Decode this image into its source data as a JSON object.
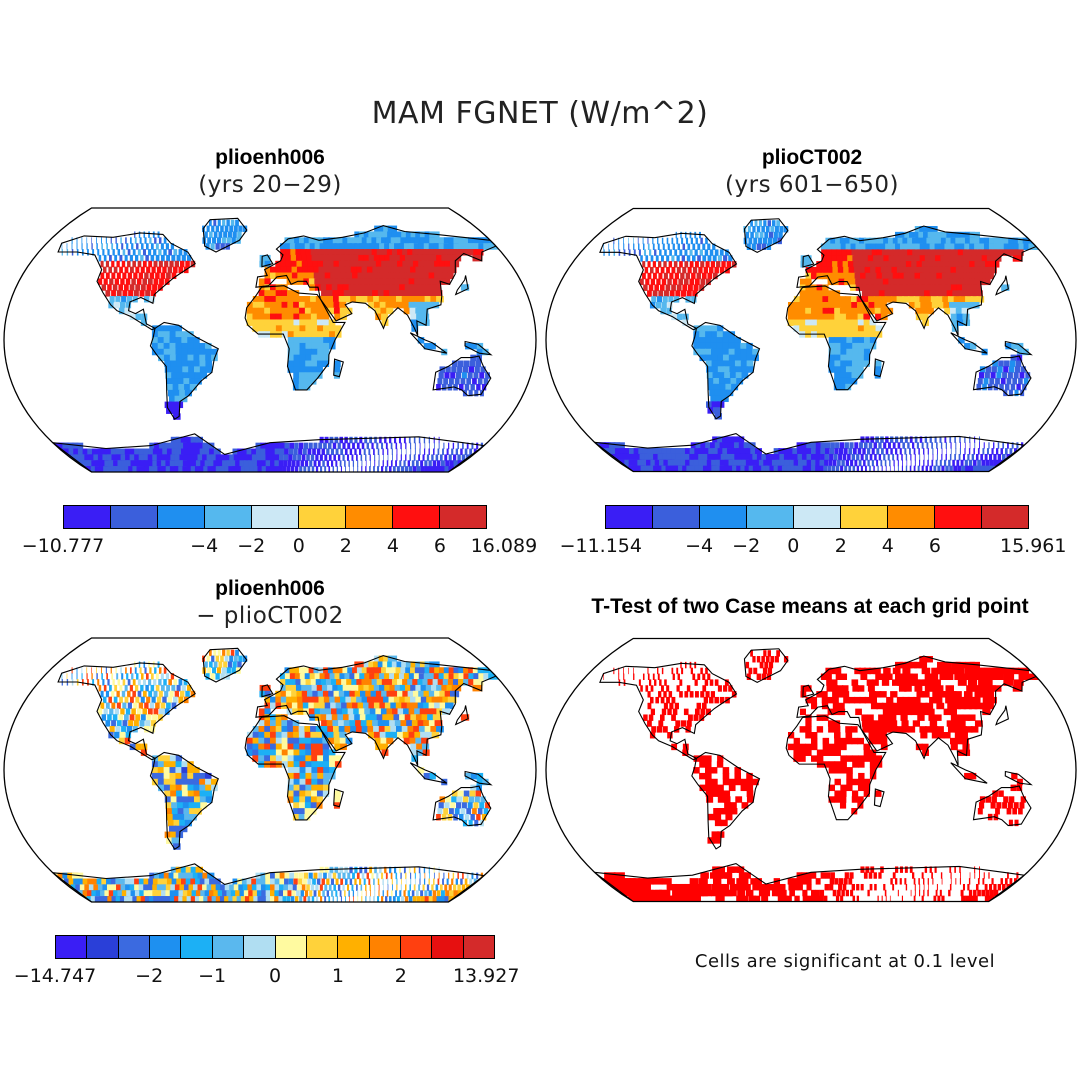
{
  "figure": {
    "title": "MAM FGNET (W/m^2)"
  },
  "panels": {
    "top_left": {
      "name": "plioenh006",
      "sub": "(yrs 20−29)"
    },
    "top_right": {
      "name": "plioCT002",
      "sub": "(yrs 601−650)"
    },
    "bottom_left": {
      "name": "plioenh006",
      "sub": "− plioCT002"
    },
    "bottom_right": {
      "name": "T-Test of two Case means at each grid point",
      "note": "Cells are significant at 0.1 level"
    }
  },
  "colorbars": {
    "top_left": {
      "colors": [
        "#3a1ef5",
        "#3b5fdc",
        "#1f8ff0",
        "#55b8ee",
        "#cce8f5",
        "#ffd23a",
        "#ff8c00",
        "#ff0f0f",
        "#d42a2a"
      ],
      "ticks": [
        "−10.777",
        "−4",
        "−2",
        "0",
        "2",
        "4",
        "6",
        "16.089"
      ]
    },
    "top_right": {
      "colors": [
        "#3a1ef5",
        "#3b5fdc",
        "#1f8ff0",
        "#55b8ee",
        "#cce8f5",
        "#ffd23a",
        "#ff8c00",
        "#ff0f0f",
        "#d42a2a"
      ],
      "ticks": [
        "−11.154",
        "−4",
        "−2",
        "0",
        "2",
        "4",
        "6",
        "15.961"
      ]
    },
    "bottom_left": {
      "colors": [
        "#3a1ef5",
        "#2a3fd8",
        "#3b6ae0",
        "#1e90f0",
        "#1cb0f5",
        "#5ab8ee",
        "#b0def2",
        "#fffaa0",
        "#ffd23a",
        "#ffb000",
        "#ff8200",
        "#ff4010",
        "#e61010",
        "#d42a2a"
      ],
      "ticks": [
        "−14.747",
        "−2",
        "−1",
        "0",
        "1",
        "2",
        "13.927"
      ]
    }
  },
  "legend": {
    "significant_color": "#ff0000"
  }
}
